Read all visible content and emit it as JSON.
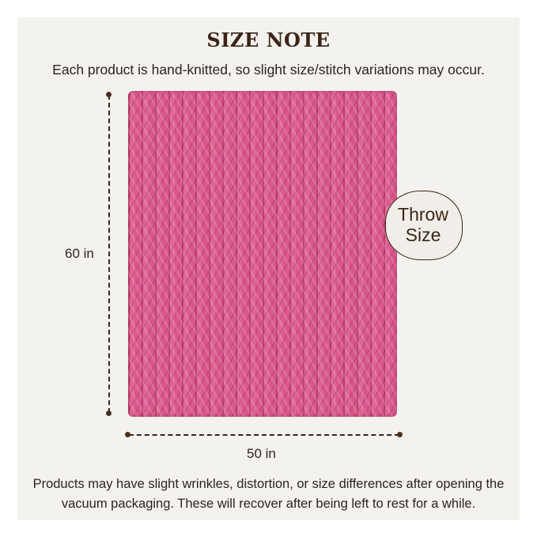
{
  "title": "SIZE NOTE",
  "subtitle": "Each product is hand-knitted, so slight size/stitch variations may occur.",
  "dimensions": {
    "height": "60 in",
    "width": "50 in"
  },
  "badge": {
    "line1": "Throw",
    "line2": "Size"
  },
  "note": {
    "line1": "Products may have slight wrinkles, distortion, or size differences after opening the",
    "line2": "vacuum packaging. These will recover after being left to rest for a while."
  },
  "colors": {
    "background": "#f4f2ee",
    "text": "#3b2417",
    "blanket": "#d9588b"
  }
}
